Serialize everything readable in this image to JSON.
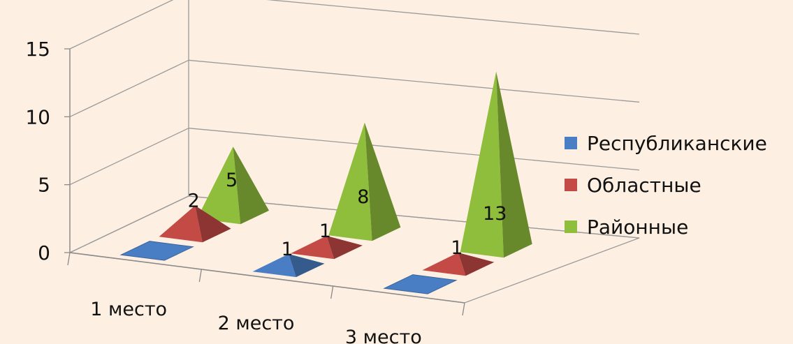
{
  "chart_data": {
    "type": "bar",
    "style": "3d-pyramid",
    "categories": [
      "1 место",
      "2 место",
      "3 место"
    ],
    "series": [
      {
        "name": "Республиканские",
        "values": [
          0,
          1,
          0
        ],
        "color": "#4a7ec4",
        "data_labels": [
          "",
          "1",
          ""
        ]
      },
      {
        "name": "Областные",
        "values": [
          2,
          1,
          1
        ],
        "color": "#c44a45",
        "data_labels": [
          "2",
          "1",
          "1"
        ]
      },
      {
        "name": "Районные",
        "values": [
          5,
          8,
          13
        ],
        "color": "#8fbe3d",
        "data_labels": [
          "5",
          "8",
          "13"
        ]
      }
    ],
    "y_ticks": [
      "0",
      "5",
      "10",
      "15"
    ],
    "ylim": [
      0,
      15
    ],
    "grid": true,
    "legend_position": "right"
  }
}
